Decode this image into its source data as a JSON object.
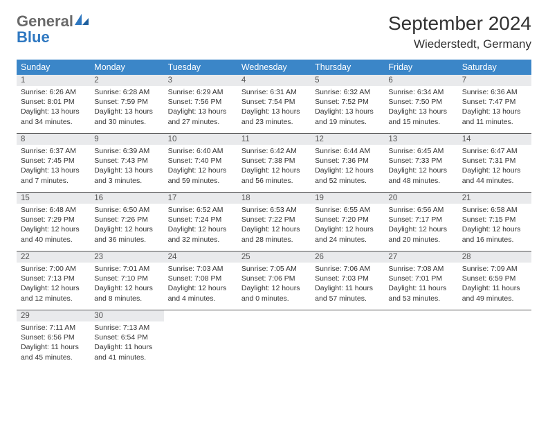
{
  "logo": {
    "general": "General",
    "blue": "Blue"
  },
  "title": {
    "month": "September 2024",
    "location": "Wiederstedt, Germany"
  },
  "colors": {
    "header_bg": "#3b86c8",
    "header_fg": "#ffffff",
    "daynum_bg": "#e9eaec",
    "row_divider": "#555555",
    "logo_gray": "#6a6a6a",
    "logo_blue": "#2f78c1"
  },
  "daysOfWeek": [
    "Sunday",
    "Monday",
    "Tuesday",
    "Wednesday",
    "Thursday",
    "Friday",
    "Saturday"
  ],
  "weeks": [
    [
      {
        "n": "1",
        "sunrise": "Sunrise: 6:26 AM",
        "sunset": "Sunset: 8:01 PM",
        "dayl1": "Daylight: 13 hours",
        "dayl2": "and 34 minutes."
      },
      {
        "n": "2",
        "sunrise": "Sunrise: 6:28 AM",
        "sunset": "Sunset: 7:59 PM",
        "dayl1": "Daylight: 13 hours",
        "dayl2": "and 30 minutes."
      },
      {
        "n": "3",
        "sunrise": "Sunrise: 6:29 AM",
        "sunset": "Sunset: 7:56 PM",
        "dayl1": "Daylight: 13 hours",
        "dayl2": "and 27 minutes."
      },
      {
        "n": "4",
        "sunrise": "Sunrise: 6:31 AM",
        "sunset": "Sunset: 7:54 PM",
        "dayl1": "Daylight: 13 hours",
        "dayl2": "and 23 minutes."
      },
      {
        "n": "5",
        "sunrise": "Sunrise: 6:32 AM",
        "sunset": "Sunset: 7:52 PM",
        "dayl1": "Daylight: 13 hours",
        "dayl2": "and 19 minutes."
      },
      {
        "n": "6",
        "sunrise": "Sunrise: 6:34 AM",
        "sunset": "Sunset: 7:50 PM",
        "dayl1": "Daylight: 13 hours",
        "dayl2": "and 15 minutes."
      },
      {
        "n": "7",
        "sunrise": "Sunrise: 6:36 AM",
        "sunset": "Sunset: 7:47 PM",
        "dayl1": "Daylight: 13 hours",
        "dayl2": "and 11 minutes."
      }
    ],
    [
      {
        "n": "8",
        "sunrise": "Sunrise: 6:37 AM",
        "sunset": "Sunset: 7:45 PM",
        "dayl1": "Daylight: 13 hours",
        "dayl2": "and 7 minutes."
      },
      {
        "n": "9",
        "sunrise": "Sunrise: 6:39 AM",
        "sunset": "Sunset: 7:43 PM",
        "dayl1": "Daylight: 13 hours",
        "dayl2": "and 3 minutes."
      },
      {
        "n": "10",
        "sunrise": "Sunrise: 6:40 AM",
        "sunset": "Sunset: 7:40 PM",
        "dayl1": "Daylight: 12 hours",
        "dayl2": "and 59 minutes."
      },
      {
        "n": "11",
        "sunrise": "Sunrise: 6:42 AM",
        "sunset": "Sunset: 7:38 PM",
        "dayl1": "Daylight: 12 hours",
        "dayl2": "and 56 minutes."
      },
      {
        "n": "12",
        "sunrise": "Sunrise: 6:44 AM",
        "sunset": "Sunset: 7:36 PM",
        "dayl1": "Daylight: 12 hours",
        "dayl2": "and 52 minutes."
      },
      {
        "n": "13",
        "sunrise": "Sunrise: 6:45 AM",
        "sunset": "Sunset: 7:33 PM",
        "dayl1": "Daylight: 12 hours",
        "dayl2": "and 48 minutes."
      },
      {
        "n": "14",
        "sunrise": "Sunrise: 6:47 AM",
        "sunset": "Sunset: 7:31 PM",
        "dayl1": "Daylight: 12 hours",
        "dayl2": "and 44 minutes."
      }
    ],
    [
      {
        "n": "15",
        "sunrise": "Sunrise: 6:48 AM",
        "sunset": "Sunset: 7:29 PM",
        "dayl1": "Daylight: 12 hours",
        "dayl2": "and 40 minutes."
      },
      {
        "n": "16",
        "sunrise": "Sunrise: 6:50 AM",
        "sunset": "Sunset: 7:26 PM",
        "dayl1": "Daylight: 12 hours",
        "dayl2": "and 36 minutes."
      },
      {
        "n": "17",
        "sunrise": "Sunrise: 6:52 AM",
        "sunset": "Sunset: 7:24 PM",
        "dayl1": "Daylight: 12 hours",
        "dayl2": "and 32 minutes."
      },
      {
        "n": "18",
        "sunrise": "Sunrise: 6:53 AM",
        "sunset": "Sunset: 7:22 PM",
        "dayl1": "Daylight: 12 hours",
        "dayl2": "and 28 minutes."
      },
      {
        "n": "19",
        "sunrise": "Sunrise: 6:55 AM",
        "sunset": "Sunset: 7:20 PM",
        "dayl1": "Daylight: 12 hours",
        "dayl2": "and 24 minutes."
      },
      {
        "n": "20",
        "sunrise": "Sunrise: 6:56 AM",
        "sunset": "Sunset: 7:17 PM",
        "dayl1": "Daylight: 12 hours",
        "dayl2": "and 20 minutes."
      },
      {
        "n": "21",
        "sunrise": "Sunrise: 6:58 AM",
        "sunset": "Sunset: 7:15 PM",
        "dayl1": "Daylight: 12 hours",
        "dayl2": "and 16 minutes."
      }
    ],
    [
      {
        "n": "22",
        "sunrise": "Sunrise: 7:00 AM",
        "sunset": "Sunset: 7:13 PM",
        "dayl1": "Daylight: 12 hours",
        "dayl2": "and 12 minutes."
      },
      {
        "n": "23",
        "sunrise": "Sunrise: 7:01 AM",
        "sunset": "Sunset: 7:10 PM",
        "dayl1": "Daylight: 12 hours",
        "dayl2": "and 8 minutes."
      },
      {
        "n": "24",
        "sunrise": "Sunrise: 7:03 AM",
        "sunset": "Sunset: 7:08 PM",
        "dayl1": "Daylight: 12 hours",
        "dayl2": "and 4 minutes."
      },
      {
        "n": "25",
        "sunrise": "Sunrise: 7:05 AM",
        "sunset": "Sunset: 7:06 PM",
        "dayl1": "Daylight: 12 hours",
        "dayl2": "and 0 minutes."
      },
      {
        "n": "26",
        "sunrise": "Sunrise: 7:06 AM",
        "sunset": "Sunset: 7:03 PM",
        "dayl1": "Daylight: 11 hours",
        "dayl2": "and 57 minutes."
      },
      {
        "n": "27",
        "sunrise": "Sunrise: 7:08 AM",
        "sunset": "Sunset: 7:01 PM",
        "dayl1": "Daylight: 11 hours",
        "dayl2": "and 53 minutes."
      },
      {
        "n": "28",
        "sunrise": "Sunrise: 7:09 AM",
        "sunset": "Sunset: 6:59 PM",
        "dayl1": "Daylight: 11 hours",
        "dayl2": "and 49 minutes."
      }
    ],
    [
      {
        "n": "29",
        "sunrise": "Sunrise: 7:11 AM",
        "sunset": "Sunset: 6:56 PM",
        "dayl1": "Daylight: 11 hours",
        "dayl2": "and 45 minutes."
      },
      {
        "n": "30",
        "sunrise": "Sunrise: 7:13 AM",
        "sunset": "Sunset: 6:54 PM",
        "dayl1": "Daylight: 11 hours",
        "dayl2": "and 41 minutes."
      },
      null,
      null,
      null,
      null,
      null
    ]
  ]
}
